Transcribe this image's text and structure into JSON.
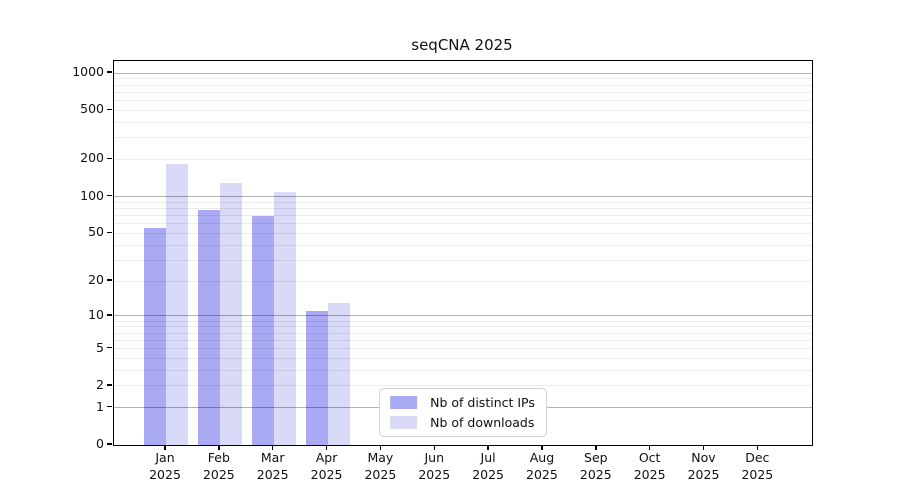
{
  "title": "seqCNA 2025",
  "chart_data": {
    "type": "bar",
    "title": "seqCNA 2025",
    "year": "2025",
    "categories": [
      "Jan",
      "Feb",
      "Mar",
      "Apr",
      "May",
      "Jun",
      "Jul",
      "Aug",
      "Sep",
      "Oct",
      "Nov",
      "Dec"
    ],
    "series": [
      {
        "name": "Nb of distinct IPs",
        "color": "#a9a9f4",
        "values": [
          55,
          77,
          69,
          11,
          null,
          null,
          null,
          null,
          null,
          null,
          null,
          null
        ]
      },
      {
        "name": "Nb of downloads",
        "color": "#d9d9f8",
        "values": [
          183,
          128,
          108,
          13,
          null,
          null,
          null,
          null,
          null,
          null,
          null,
          null
        ]
      }
    ],
    "y_ticks": [
      0,
      1,
      2,
      5,
      10,
      20,
      50,
      100,
      200,
      500,
      1000
    ],
    "y_scale": "log10(value+1)",
    "ylim": [
      0,
      1250
    ],
    "grid": "on",
    "legend_position": "lower center",
    "axis_color": "#000000",
    "major_grid_color": "#b0b0b0",
    "minor_grid_color": "#ebebeb"
  }
}
